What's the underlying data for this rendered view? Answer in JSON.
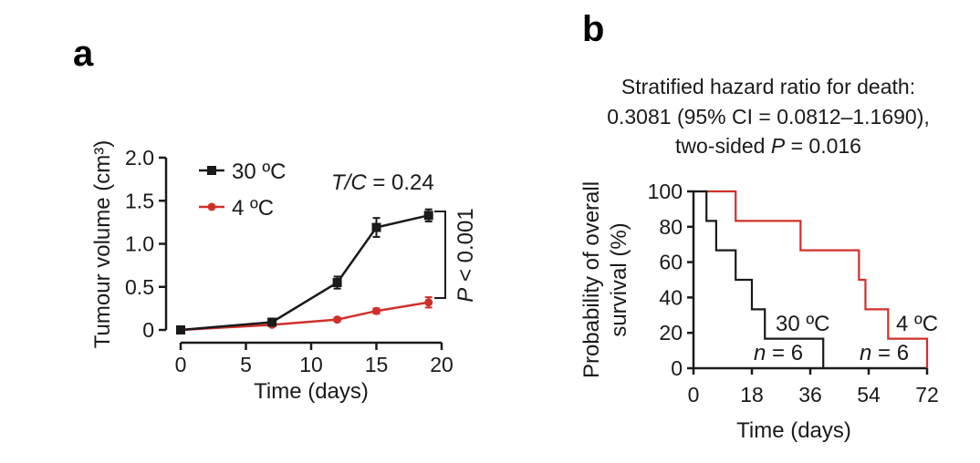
{
  "panels": {
    "a": "a",
    "b": "b"
  },
  "chart_data": [
    {
      "type": "line",
      "xlabel": "Time (days)",
      "ylabel": "Tumour volume (cm³)",
      "xlim": [
        0,
        20
      ],
      "ylim": [
        0,
        2.0
      ],
      "x_ticks": [
        "0",
        "5",
        "10",
        "15",
        "20"
      ],
      "y_ticks": [
        "0",
        "0.5",
        "1.0",
        "1.5",
        "2.0"
      ],
      "legend_position": "top-left",
      "series": [
        {
          "name": "30 ºC",
          "color": "#1a1a1a",
          "marker": "square",
          "x": [
            0,
            7,
            12,
            15,
            19
          ],
          "y": [
            0.0,
            0.09,
            0.55,
            1.19,
            1.33
          ],
          "error": [
            0.02,
            0.03,
            0.07,
            0.11,
            0.07
          ]
        },
        {
          "name": "4 ºC",
          "color": "#d0302a",
          "marker": "circle",
          "x": [
            0,
            7,
            12,
            15,
            19
          ],
          "y": [
            0.0,
            0.06,
            0.12,
            0.22,
            0.32
          ],
          "error": [
            0.01,
            0.01,
            0.02,
            0.03,
            0.06
          ]
        }
      ],
      "annotations": {
        "tc_prefix": "T/C",
        "tc_suffix": " = 0.24",
        "pvalue_prefix": "P",
        "pvalue_suffix": " < 0.001"
      }
    },
    {
      "type": "line",
      "subtype": "kaplan-meier-step",
      "title_line1": "Stratified hazard ratio for death:",
      "title_line2": "0.3081 (95% CI = 0.0812–1.1690),",
      "title_line3_prefix": "two-sided ",
      "title_line3_p": "P",
      "title_line3_suffix": " = 0.016",
      "xlabel": "Time (days)",
      "ylabel_line1": "Probability of overall",
      "ylabel_line2": "survival (%)",
      "xlim": [
        0,
        72
      ],
      "ylim": [
        0,
        100
      ],
      "x_ticks": [
        "0",
        "18",
        "36",
        "54",
        "72"
      ],
      "y_ticks": [
        "0",
        "20",
        "40",
        "60",
        "80",
        "100"
      ],
      "series": [
        {
          "name": "30 ºC",
          "color": "#1a1a1a",
          "n_label_prefix": "n",
          "n_label_suffix": " = 6",
          "x": [
            0,
            4,
            4,
            7,
            7,
            13,
            13,
            18,
            18,
            22,
            22,
            40,
            40
          ],
          "y": [
            100,
            100,
            83.3,
            83.3,
            66.7,
            66.7,
            50,
            50,
            33.3,
            33.3,
            16.7,
            16.7,
            0
          ]
        },
        {
          "name": "4 ºC",
          "color": "#d0302a",
          "n_label_prefix": "n",
          "n_label_suffix": " = 6",
          "x": [
            0,
            13,
            13,
            33,
            33,
            51,
            51,
            53,
            53,
            60,
            60,
            72,
            72
          ],
          "y": [
            100,
            100,
            83.3,
            83.3,
            66.7,
            66.7,
            50,
            50,
            33.3,
            33.3,
            16.7,
            16.7,
            0
          ]
        }
      ]
    }
  ]
}
